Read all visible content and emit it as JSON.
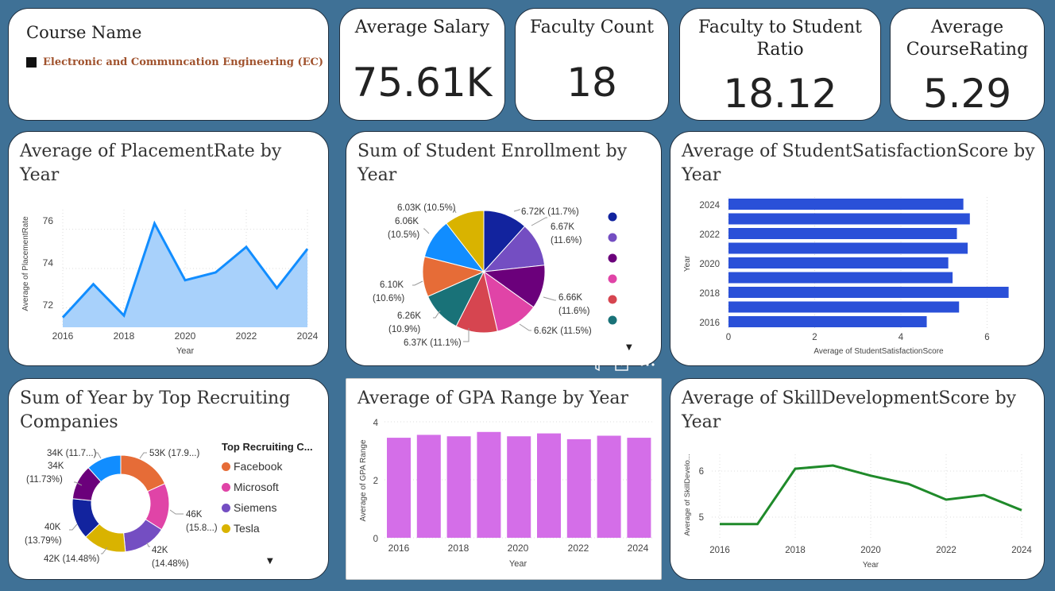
{
  "slicer": {
    "title": "Course Name",
    "selected": "Electronic and Communcation Engineering (EC)"
  },
  "kpis": {
    "avg_salary": {
      "title": "Average Salary",
      "value": "75.61K"
    },
    "faculty_count": {
      "title": "Faculty Count",
      "value": "18"
    },
    "faculty_student_ratio": {
      "title_line1": "Faculty to Student",
      "title_line2": "Ratio",
      "value": "18.12"
    },
    "avg_course_rating": {
      "title_line1": "Average",
      "title_line2": "CourseRating",
      "value": "5.29"
    }
  },
  "visual_header": {
    "filter_icon": "filter-icon",
    "focus_icon": "focus-mode-icon",
    "more_icon": "more-options-icon"
  },
  "placement": {
    "title_line1": "Average of PlacementRate by",
    "title_line2": "Year",
    "xlabel": "Year",
    "ylabel": "Average of PlacementRate",
    "xticks": [
      "2016",
      "2018",
      "2020",
      "2022",
      "2024"
    ],
    "yticks": [
      "72",
      "74",
      "76"
    ]
  },
  "enrollment": {
    "title_line1": "Sum of Student Enrollment by",
    "title_line2": "Year",
    "labels": [
      [
        "6.72K (11.7%)"
      ],
      [
        "6.67K",
        "(11.6%)"
      ],
      [
        "6.66K",
        "(11.6%)"
      ],
      [
        "6.62K (11.5%)"
      ],
      [
        "6.37K (11.1%)"
      ],
      [
        "6.26K",
        "(10.9%)"
      ],
      [
        "6.10K",
        "(10.6%)"
      ],
      [
        "6.06K",
        "(10.5%)"
      ],
      [
        "6.03K (10.5%)"
      ]
    ]
  },
  "satisfaction": {
    "title_line1": "Average of StudentSatisfactionScore by",
    "title_line2": "Year",
    "xlabel": "Average of StudentSatisfactionScore",
    "ylabel": "Year",
    "xticks": [
      "0",
      "2",
      "4",
      "6"
    ],
    "yticks": [
      "2024",
      "2022",
      "2020",
      "2018",
      "2016"
    ]
  },
  "recruiting": {
    "title_line1": "Sum of Year by Top Recruiting",
    "title_line2": "Companies",
    "legend_title": "Top Recruiting C...",
    "legend": [
      "Facebook",
      "Microsoft",
      "Siemens",
      "Tesla"
    ],
    "labels": [
      [
        "53K (17.9...)"
      ],
      [
        "46K",
        "(15.8...)"
      ],
      [
        "42K",
        "(14.48%)"
      ],
      [
        "42K (14.48%)"
      ],
      [
        "40K",
        "(13.79%)"
      ],
      [
        "34K",
        "(11.73%)"
      ],
      [
        "34K (11.7...)"
      ]
    ]
  },
  "gpa": {
    "title": "Average of GPA Range by Year",
    "xlabel": "Year",
    "ylabel": "Average of GPA Range",
    "xticks": [
      "2016",
      "2018",
      "2020",
      "2022",
      "2024"
    ],
    "yticks": [
      "0",
      "2",
      "4"
    ]
  },
  "skill": {
    "title_line1": "Average of SkillDevelopmentScore by",
    "title_line2": "Year",
    "xlabel": "Year",
    "ylabel": "Average of SkillDevelo...",
    "xticks": [
      "2016",
      "2018",
      "2020",
      "2022",
      "2024"
    ],
    "yticks": [
      "5",
      "6"
    ]
  },
  "chart_data": [
    {
      "type": "area",
      "title": "Average of PlacementRate by Year",
      "xlabel": "Year",
      "ylabel": "Average of PlacementRate",
      "x": [
        2016,
        2017,
        2018,
        2019,
        2020,
        2021,
        2022,
        2023,
        2024
      ],
      "values": [
        71.5,
        73.2,
        71.6,
        76.3,
        73.4,
        73.8,
        75.1,
        73.0,
        75.0
      ],
      "ylim": [
        71,
        77
      ],
      "color": "#118dff",
      "fill": "#a8d1fb"
    },
    {
      "type": "pie",
      "title": "Sum of Student Enrollment by Year",
      "values": [
        6.72,
        6.67,
        6.66,
        6.62,
        6.37,
        6.26,
        6.1,
        6.06,
        6.03
      ],
      "colors": [
        "#12239e",
        "#744ec2",
        "#6b007b",
        "#e044a7",
        "#d64550",
        "#197278",
        "#e66c37",
        "#118dff",
        "#d9b300"
      ]
    },
    {
      "type": "bar",
      "orientation": "horizontal",
      "title": "Average of StudentSatisfactionScore by Year",
      "xlabel": "Average of StudentSatisfactionScore",
      "ylabel": "Year",
      "categories": [
        2024,
        2023,
        2022,
        2021,
        2020,
        2019,
        2018,
        2017,
        2016
      ],
      "values": [
        5.45,
        5.6,
        5.3,
        5.55,
        5.1,
        5.2,
        6.5,
        5.35,
        4.6
      ],
      "xlim": [
        0,
        7
      ],
      "color": "#2a50d8"
    },
    {
      "type": "pie",
      "subtype": "donut",
      "title": "Sum of Year by Top Recruiting Companies",
      "values": [
        53,
        46,
        42,
        42,
        40,
        34,
        34
      ],
      "colors": [
        "#e66c37",
        "#e044a7",
        "#744ec2",
        "#d9b300",
        "#12239e",
        "#6b007b",
        "#118dff"
      ]
    },
    {
      "type": "bar",
      "title": "Average of GPA Range by Year",
      "xlabel": "Year",
      "ylabel": "Average of GPA Range",
      "categories": [
        2016,
        2017,
        2018,
        2019,
        2020,
        2021,
        2022,
        2023,
        2024
      ],
      "values": [
        3.45,
        3.55,
        3.5,
        3.65,
        3.5,
        3.6,
        3.4,
        3.52,
        3.45
      ],
      "ylim": [
        0,
        4
      ],
      "color": "#d46ee8"
    },
    {
      "type": "line",
      "title": "Average of SkillDevelopmentScore by Year",
      "xlabel": "Year",
      "ylabel": "Average of SkillDevelo...",
      "x": [
        2016,
        2017,
        2018,
        2019,
        2020,
        2021,
        2022,
        2023,
        2024
      ],
      "values": [
        4.85,
        4.85,
        6.05,
        6.12,
        5.9,
        5.72,
        5.38,
        5.48,
        5.15
      ],
      "ylim": [
        4.5,
        6.5
      ],
      "color": "#1f8a2a"
    }
  ]
}
